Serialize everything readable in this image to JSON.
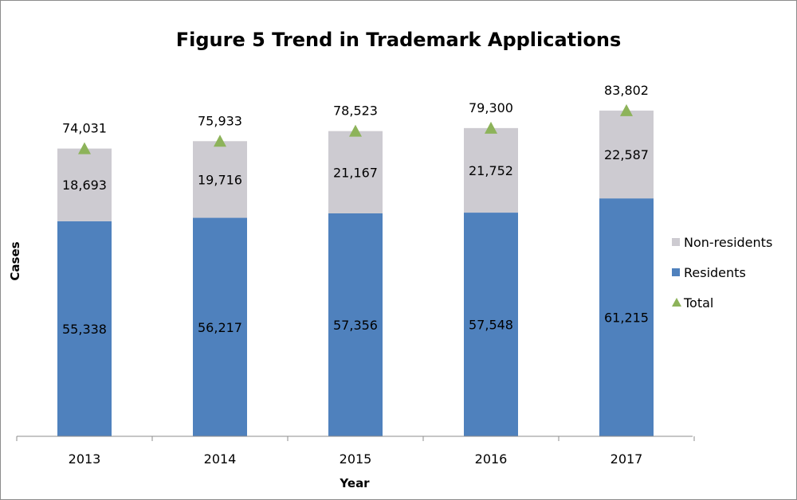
{
  "chart_data": {
    "type": "bar",
    "stacked": true,
    "title": "Figure 5 Trend in Trademark Applications",
    "xlabel": "Year",
    "ylabel": "Cases",
    "categories": [
      "2013",
      "2014",
      "2015",
      "2016",
      "2017"
    ],
    "ylim": [
      0,
      100000
    ],
    "grid": false,
    "legend_position": "right",
    "series": [
      {
        "name": "Residents",
        "kind": "bar",
        "color": "#4f81bd",
        "values": [
          55338,
          56217,
          57356,
          57548,
          61215
        ],
        "labels": [
          "55,338",
          "56,217",
          "57,356",
          "57,548",
          "61,215"
        ]
      },
      {
        "name": "Non-residents",
        "kind": "bar",
        "color": "#cdcbd1",
        "values": [
          18693,
          19716,
          21167,
          21752,
          22587
        ],
        "labels": [
          "18,693",
          "19,716",
          "21,167",
          "21,752",
          "22,587"
        ]
      },
      {
        "name": "Total",
        "kind": "marker",
        "marker": "triangle",
        "color": "#8db35a",
        "values": [
          74031,
          75933,
          78523,
          79300,
          83802
        ],
        "labels": [
          "74,031",
          "75,933",
          "78,523",
          "79,300",
          "83,802"
        ]
      }
    ],
    "legend": [
      {
        "name": "Non-residents",
        "color": "#cdcbd1",
        "shape": "square"
      },
      {
        "name": "Residents",
        "color": "#4f81bd",
        "shape": "square"
      },
      {
        "name": "Total",
        "color": "#8db35a",
        "shape": "triangle"
      }
    ]
  }
}
